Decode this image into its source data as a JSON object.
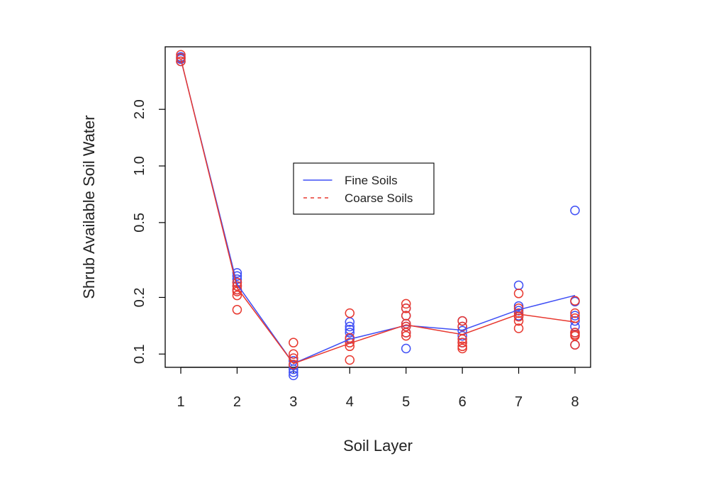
{
  "chart_data": {
    "type": "scatter",
    "xlabel": "Soil Layer",
    "ylabel": "Shrub Available Soil Water",
    "x_scale": "linear",
    "y_scale": "log",
    "xlim": [
      1,
      8
    ],
    "ylim": [
      0.085,
      4.3
    ],
    "x_ticks": [
      1,
      2,
      3,
      4,
      5,
      6,
      7,
      8
    ],
    "y_ticks": [
      0.1,
      0.2,
      0.5,
      1.0,
      2.0
    ],
    "y_tick_labels": [
      "0.1",
      "0.2",
      "0.5",
      "1.0",
      "2.0"
    ],
    "grid": false,
    "legend_position": "center",
    "series": [
      {
        "name": "Fine Soils",
        "color": "#3f4ff5",
        "line_style": "solid",
        "line_x": [
          1,
          2,
          3,
          4,
          5,
          6,
          7,
          8
        ],
        "line_y": [
          3.7,
          0.235,
          0.089,
          0.12,
          0.142,
          0.134,
          0.172,
          0.205
        ],
        "points": [
          [
            1,
            3.6
          ],
          [
            1,
            3.7
          ],
          [
            1,
            3.8
          ],
          [
            2,
            0.27
          ],
          [
            2,
            0.26
          ],
          [
            2,
            0.25
          ],
          [
            2,
            0.24
          ],
          [
            2,
            0.23
          ],
          [
            2,
            0.22
          ],
          [
            3,
            0.083
          ],
          [
            3,
            0.08
          ],
          [
            3,
            0.087
          ],
          [
            3,
            0.092
          ],
          [
            3,
            0.077
          ],
          [
            4,
            0.148
          ],
          [
            4,
            0.14
          ],
          [
            4,
            0.135
          ],
          [
            4,
            0.13
          ],
          [
            4,
            0.12
          ],
          [
            5,
            0.175
          ],
          [
            5,
            0.16
          ],
          [
            5,
            0.145
          ],
          [
            5,
            0.14
          ],
          [
            5,
            0.13
          ],
          [
            5,
            0.107
          ],
          [
            6,
            0.15
          ],
          [
            6,
            0.14
          ],
          [
            6,
            0.133
          ],
          [
            6,
            0.125
          ],
          [
            6,
            0.115
          ],
          [
            7,
            0.232
          ],
          [
            7,
            0.18
          ],
          [
            7,
            0.17
          ],
          [
            7,
            0.16
          ],
          [
            8,
            0.58
          ],
          [
            8,
            0.19
          ],
          [
            8,
            0.16
          ],
          [
            8,
            0.15
          ],
          [
            8,
            0.14
          ],
          [
            8,
            0.13
          ],
          [
            8,
            0.112
          ]
        ]
      },
      {
        "name": "Coarse Soils",
        "color": "#e8382f",
        "line_style": "dashed",
        "line_x": [
          1,
          2,
          3,
          4,
          5,
          6,
          7,
          8
        ],
        "line_y": [
          3.72,
          0.225,
          0.089,
          0.114,
          0.143,
          0.127,
          0.163,
          0.148
        ],
        "points": [
          [
            1,
            3.9
          ],
          [
            1,
            3.75
          ],
          [
            1,
            3.6
          ],
          [
            2,
            0.24
          ],
          [
            2,
            0.23
          ],
          [
            2,
            0.22
          ],
          [
            2,
            0.215
          ],
          [
            2,
            0.205
          ],
          [
            2,
            0.172
          ],
          [
            3,
            0.115
          ],
          [
            3,
            0.1
          ],
          [
            3,
            0.095
          ],
          [
            3,
            0.088
          ],
          [
            4,
            0.165
          ],
          [
            4,
            0.122
          ],
          [
            4,
            0.115
          ],
          [
            4,
            0.11
          ],
          [
            4,
            0.093
          ],
          [
            5,
            0.185
          ],
          [
            5,
            0.175
          ],
          [
            5,
            0.16
          ],
          [
            5,
            0.145
          ],
          [
            5,
            0.14
          ],
          [
            5,
            0.13
          ],
          [
            5,
            0.125
          ],
          [
            6,
            0.15
          ],
          [
            6,
            0.14
          ],
          [
            6,
            0.12
          ],
          [
            6,
            0.115
          ],
          [
            6,
            0.11
          ],
          [
            6,
            0.107
          ],
          [
            7,
            0.21
          ],
          [
            7,
            0.175
          ],
          [
            7,
            0.165
          ],
          [
            7,
            0.158
          ],
          [
            7,
            0.15
          ],
          [
            7,
            0.137
          ],
          [
            8,
            0.192
          ],
          [
            8,
            0.165
          ],
          [
            8,
            0.155
          ],
          [
            8,
            0.13
          ],
          [
            8,
            0.127
          ],
          [
            8,
            0.125
          ],
          [
            8,
            0.112
          ]
        ]
      }
    ]
  }
}
